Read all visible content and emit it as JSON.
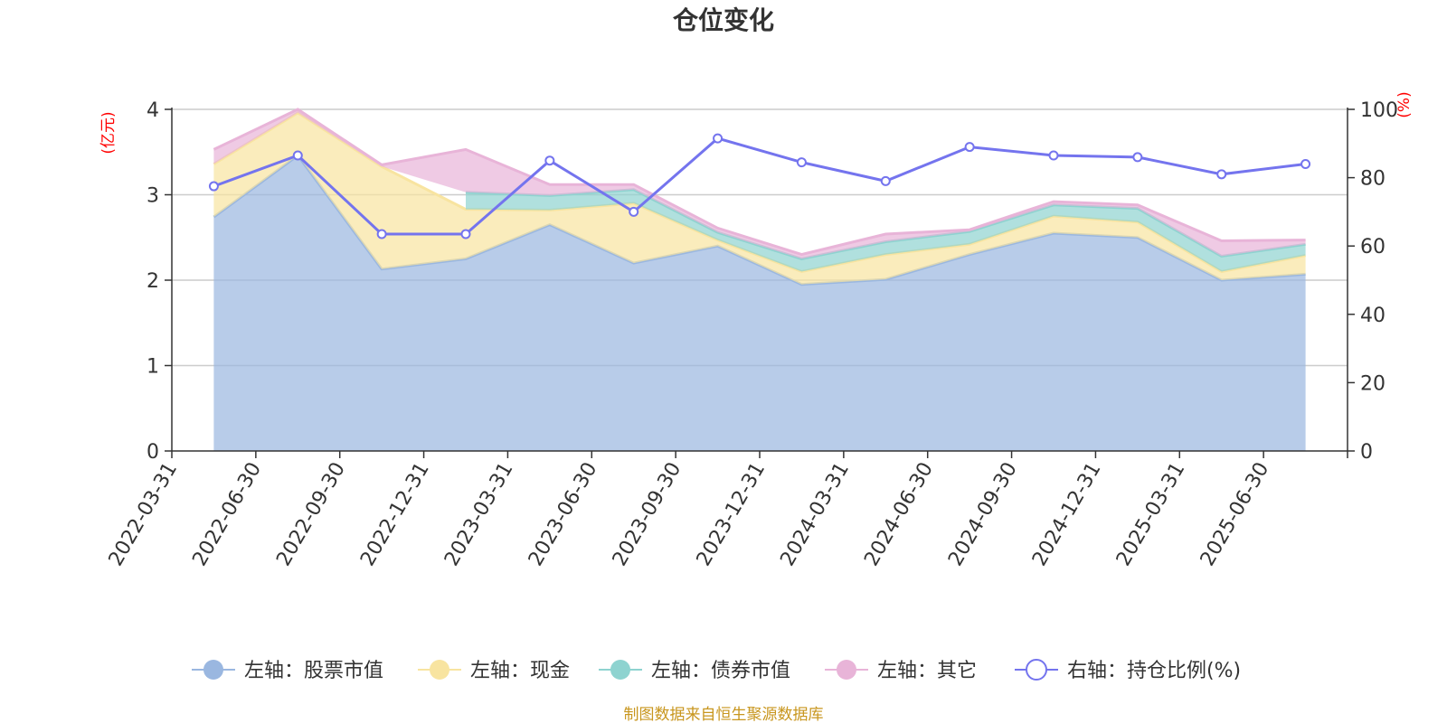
{
  "chart_data": {
    "type": "area",
    "title": "仓位变化",
    "categories": [
      "2022-03-31",
      "2022-06-30",
      "2022-09-30",
      "2022-12-31",
      "2023-03-31",
      "2023-06-30",
      "2023-09-30",
      "2023-12-31",
      "2024-03-31",
      "2024-06-30",
      "2024-09-30",
      "2024-12-31",
      "2025-03-31",
      "2025-06-30"
    ],
    "left_axis": {
      "unit": "(亿元)",
      "ylim": [
        0,
        4
      ],
      "ticks": [
        "0",
        "1",
        "2",
        "3",
        "4"
      ]
    },
    "right_axis": {
      "unit": "(%)",
      "ylim": [
        0,
        100
      ],
      "ticks": [
        "0",
        "20",
        "40",
        "60",
        "80",
        "100"
      ]
    },
    "stacked_series": [
      {
        "name": "左轴：股票市值",
        "color": "#9ab7e0",
        "values": [
          2.74,
          3.46,
          2.13,
          2.25,
          2.65,
          2.2,
          2.4,
          1.95,
          2.01,
          2.3,
          2.55,
          2.5,
          2.0,
          2.07
        ]
      },
      {
        "name": "左轴：现金",
        "color": "#f8e4a0",
        "values": [
          0.62,
          0.5,
          1.2,
          0.58,
          0.17,
          0.7,
          0.07,
          0.15,
          0.29,
          0.12,
          0.2,
          0.18,
          0.1,
          0.22
        ]
      },
      {
        "name": "左轴：债券市值",
        "color": "#8ed3d0",
        "values": [
          0.0,
          0.0,
          0.0,
          0.2,
          0.17,
          0.16,
          0.09,
          0.15,
          0.15,
          0.15,
          0.13,
          0.16,
          0.18,
          0.13
        ]
      },
      {
        "name": "左轴：其它",
        "color": "#e8b4d8",
        "values": [
          0.17,
          0.04,
          0.02,
          0.5,
          0.13,
          0.06,
          0.05,
          0.05,
          0.09,
          0.02,
          0.04,
          0.04,
          0.18,
          0.05
        ]
      }
    ],
    "line_series": {
      "name": "右轴：持仓比例(%)",
      "color": "#7474ee",
      "values": [
        77.5,
        86.5,
        63.5,
        63.5,
        85.0,
        70.0,
        91.5,
        84.5,
        79.0,
        89.0,
        86.5,
        86.0,
        81.0,
        84.0
      ]
    },
    "grid": true,
    "legend_position": "bottom"
  },
  "source_note": "制图数据来自恒生聚源数据库"
}
